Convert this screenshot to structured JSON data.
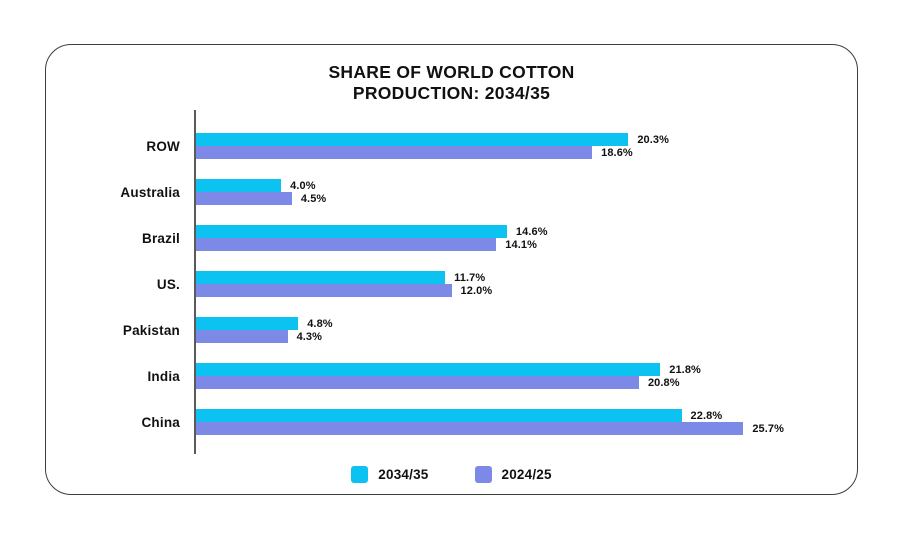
{
  "title": {
    "line1": "SHARE OF WORLD COTTON",
    "line2": "PRODUCTION: 2034/35"
  },
  "chart_data": {
    "type": "bar",
    "orientation": "horizontal",
    "title": "SHARE OF WORLD COTTON PRODUCTION: 2034/35",
    "categories": [
      "ROW",
      "Australia",
      "Brazil",
      "US.",
      "Pakistan",
      "India",
      "China"
    ],
    "series": [
      {
        "name": "2034/35",
        "color": "#0cc2f0",
        "values": [
          20.3,
          4.0,
          14.6,
          11.7,
          4.8,
          21.8,
          22.8
        ]
      },
      {
        "name": "2024/25",
        "color": "#7d89e6",
        "values": [
          18.6,
          4.5,
          14.1,
          12.0,
          4.3,
          20.8,
          25.7
        ]
      }
    ],
    "value_suffix": "%",
    "value_decimals": 1,
    "xlabel": "",
    "ylabel": "",
    "xlim": [
      0,
      27
    ],
    "grid": false,
    "legend_position": "bottom",
    "axis_color": "#5a5a5a"
  }
}
